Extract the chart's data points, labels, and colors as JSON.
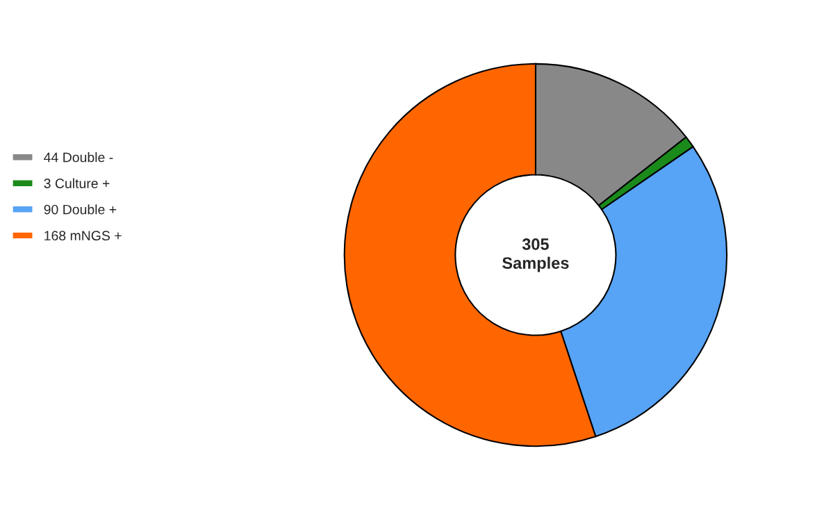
{
  "chart_data": {
    "type": "donut",
    "categories": [
      "44 Double -",
      "3 Culture +",
      "90 Double +",
      "168 mNGS +"
    ],
    "values": [
      44,
      3,
      90,
      168
    ],
    "colors": [
      "#888888",
      "#1a8a1a",
      "#57a3f5",
      "#ff6600"
    ],
    "annotations": [
      "305\nSamples"
    ],
    "legend": "left"
  }
}
